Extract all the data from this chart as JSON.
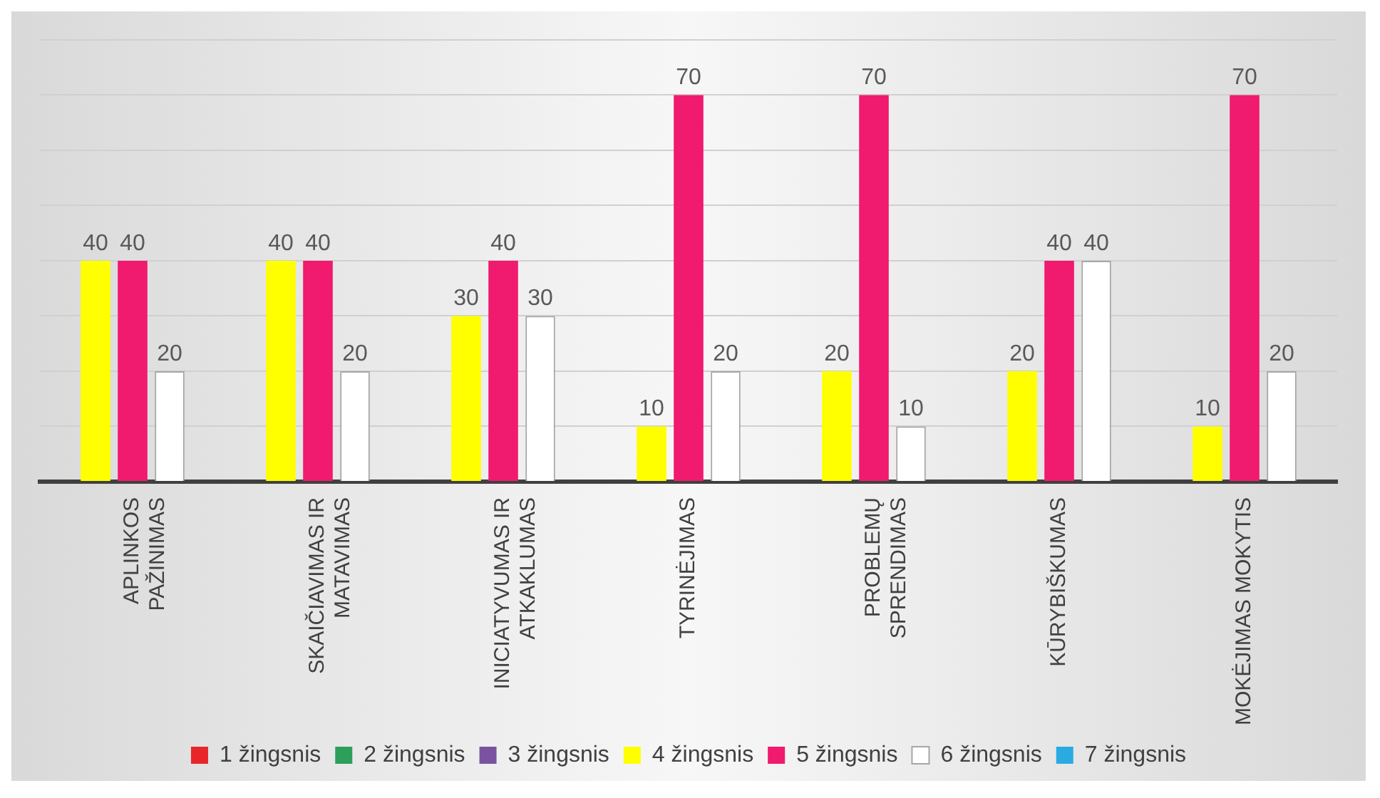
{
  "chart_data": {
    "type": "bar",
    "categories": [
      "APLINKOS\nPAŽINIMAS",
      "SKAIČIAVIMAS IR\nMATAVIMAS",
      "INICIATYVUMAS IR\nATKAKLUMAS",
      "TYRINĖJIMAS",
      "PROBLEMŲ\nSPRENDIMAS",
      "KŪRYBIŠKUMAS",
      "MOKĖJIMAS MOKYTIS"
    ],
    "series": [
      {
        "name": "1 žingsnis",
        "color": "#e8262a",
        "values": [
          null,
          null,
          null,
          null,
          null,
          null,
          null
        ]
      },
      {
        "name": "2 žingsnis",
        "color": "#2e9e5b",
        "values": [
          null,
          null,
          null,
          null,
          null,
          null,
          null
        ]
      },
      {
        "name": "3 žingsnis",
        "color": "#7b52a0",
        "values": [
          null,
          null,
          null,
          null,
          null,
          null,
          null
        ]
      },
      {
        "name": "4 žingsnis",
        "color": "#ffff00",
        "values": [
          40,
          40,
          30,
          10,
          20,
          20,
          10
        ]
      },
      {
        "name": "5 žingsnis",
        "color": "#f01a6e",
        "values": [
          40,
          40,
          40,
          70,
          70,
          40,
          70
        ]
      },
      {
        "name": "6 žingsnis",
        "color": "#ffffff",
        "values": [
          20,
          20,
          30,
          20,
          10,
          40,
          20
        ]
      },
      {
        "name": "7 žingsnis",
        "color": "#29abe2",
        "values": [
          null,
          null,
          null,
          null,
          null,
          null,
          null
        ]
      }
    ],
    "ylim": [
      0,
      80
    ],
    "yticks": [
      {
        "value": 0,
        "label": null
      },
      {
        "value": 10,
        "label": null
      },
      {
        "value": 20,
        "label": null
      },
      {
        "value": 30,
        "label": null
      },
      {
        "value": 40,
        "label": null
      },
      {
        "value": 50,
        "label": null
      },
      {
        "value": 60,
        "label": null
      },
      {
        "value": 70,
        "label": null
      },
      {
        "value": 80,
        "label": null
      }
    ],
    "grid": "y",
    "tick_labels": "x",
    "data_labels": true,
    "legend": "bottom"
  }
}
